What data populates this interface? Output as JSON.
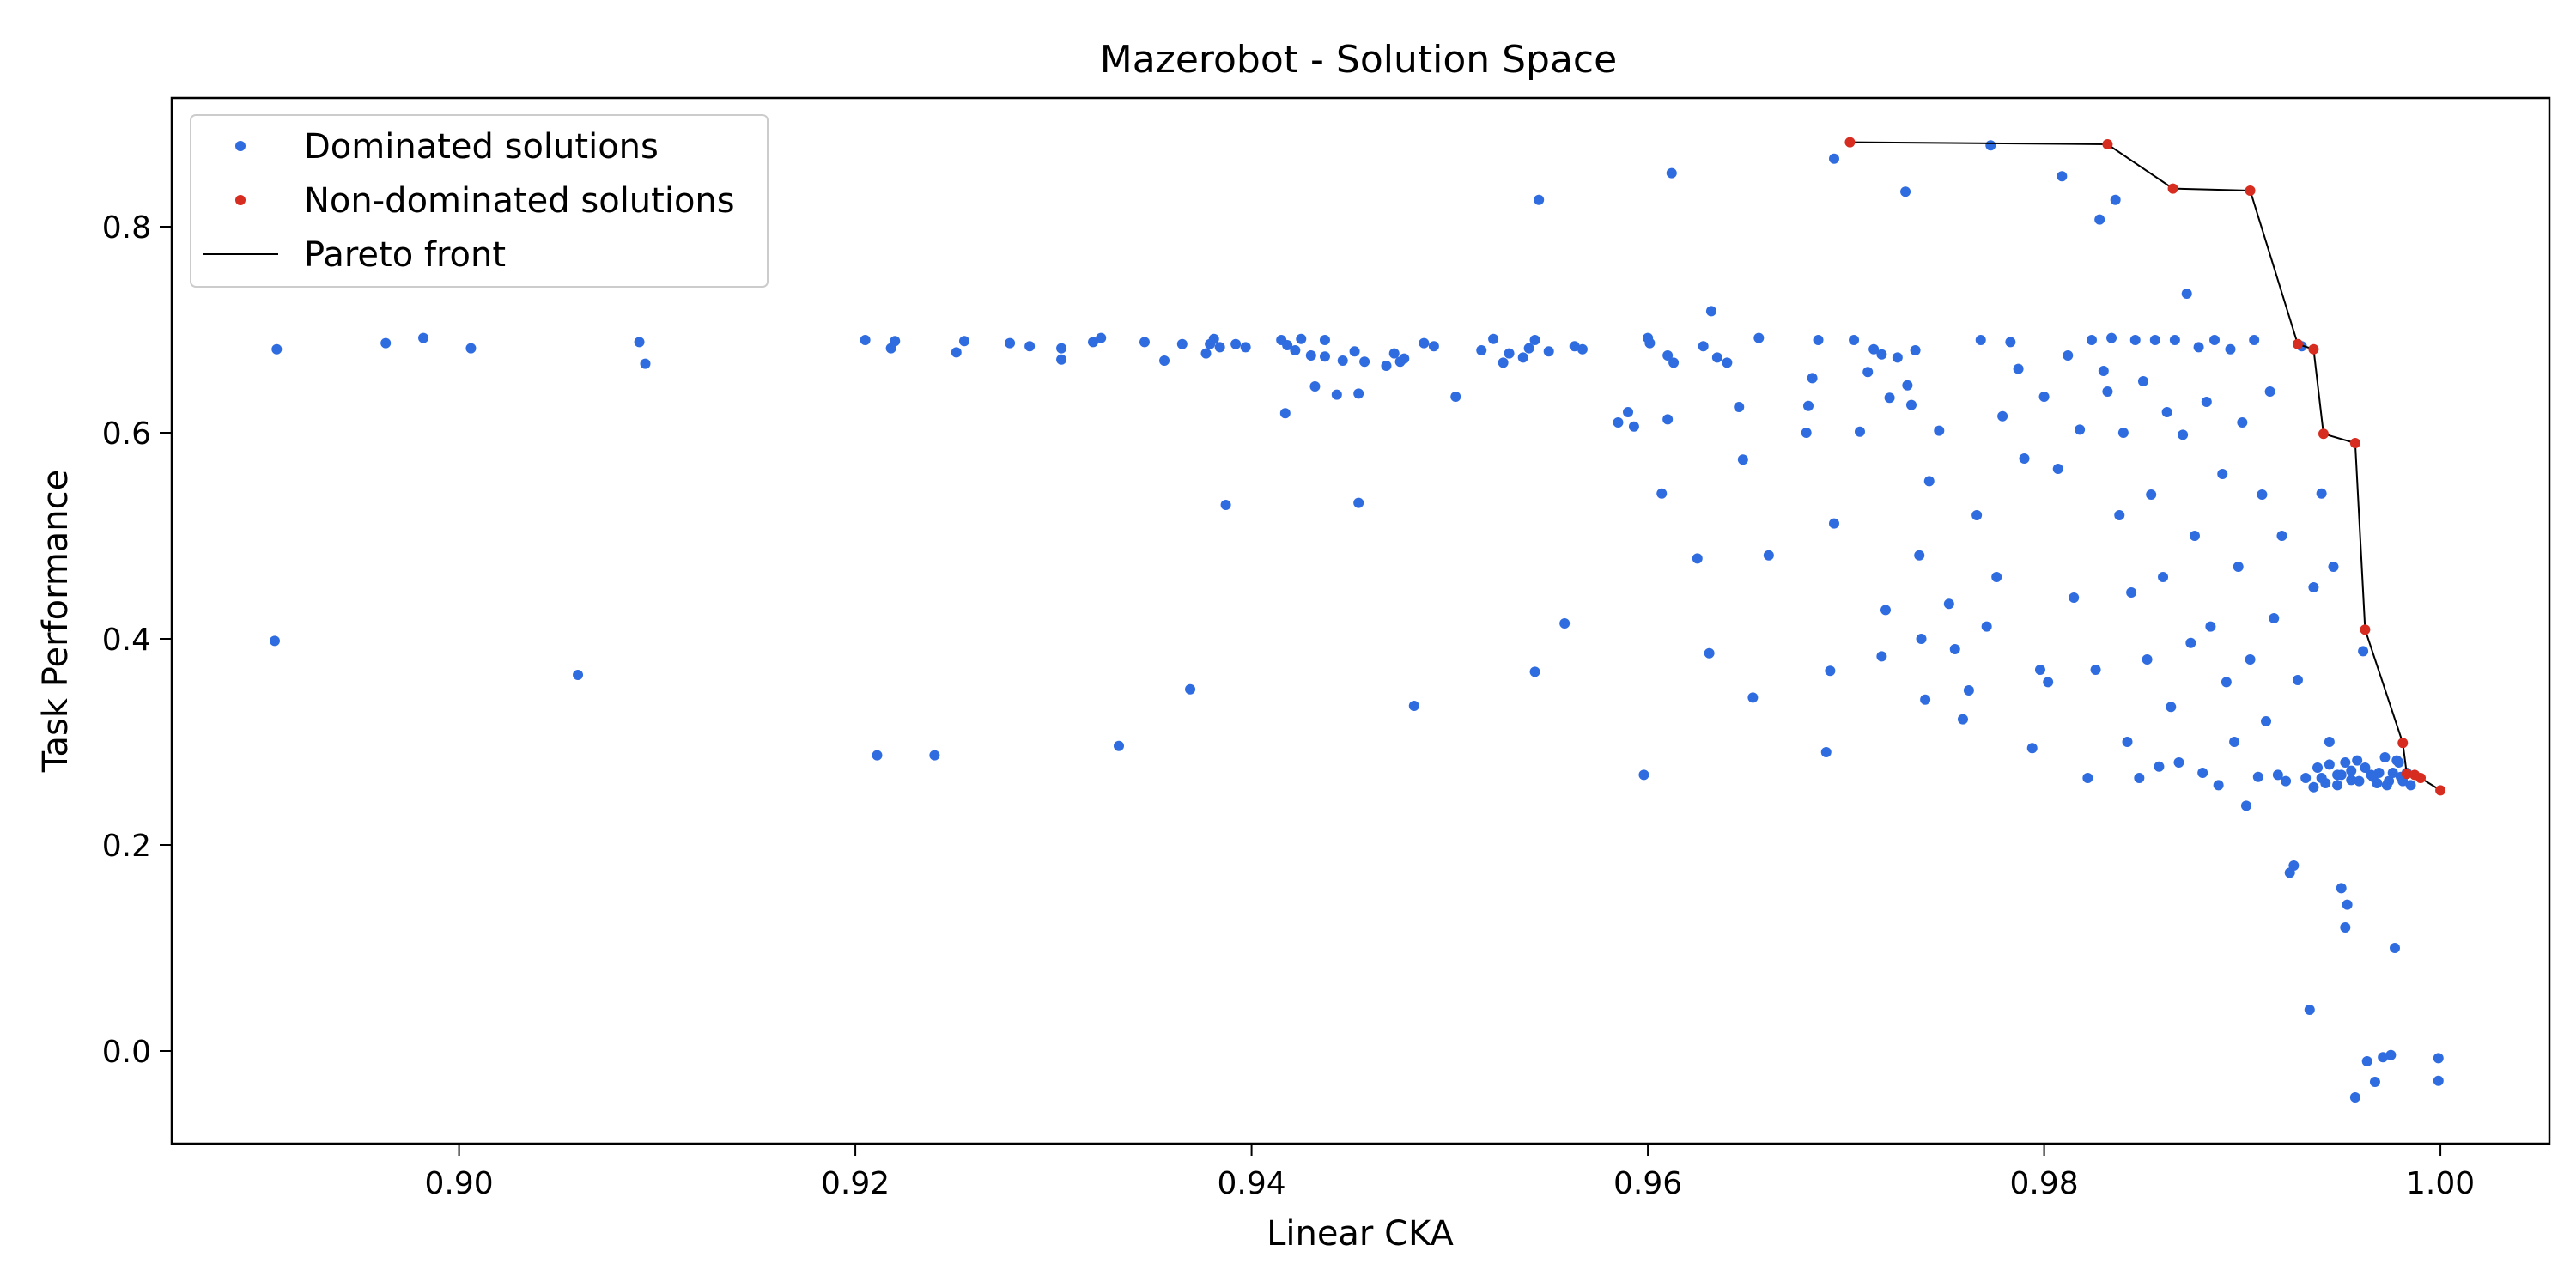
{
  "chart_data": {
    "type": "scatter",
    "title": "Mazerobot - Solution Space",
    "xlabel": "Linear CKA",
    "ylabel": "Task Performance",
    "xlim": [
      0.8855,
      1.0055
    ],
    "ylim": [
      -0.09,
      0.925
    ],
    "xticks": [
      0.9,
      0.92,
      0.94,
      0.96,
      0.98,
      1.0
    ],
    "xtick_labels": [
      "0.90",
      "0.92",
      "0.94",
      "0.96",
      "0.98",
      "1.00"
    ],
    "yticks": [
      0.0,
      0.2,
      0.4,
      0.6,
      0.8
    ],
    "ytick_labels": [
      "0.0",
      "0.2",
      "0.4",
      "0.6",
      "0.8"
    ],
    "grid": false,
    "legend_position": "top-left",
    "colors": {
      "dominated": "#2f6ce0",
      "nondominated": "#d62d20",
      "front": "#000000"
    },
    "legend": [
      "Dominated solutions",
      "Non-dominated solutions",
      "Pareto front"
    ],
    "series": [
      {
        "name": "Dominated solutions",
        "points": [
          [
            0.8908,
            0.681
          ],
          [
            0.8907,
            0.398
          ],
          [
            0.8963,
            0.687
          ],
          [
            0.8982,
            0.692
          ],
          [
            0.9006,
            0.682
          ],
          [
            0.906,
            0.365
          ],
          [
            0.9091,
            0.688
          ],
          [
            0.9094,
            0.667
          ],
          [
            0.9205,
            0.69
          ],
          [
            0.9218,
            0.682
          ],
          [
            0.922,
            0.689
          ],
          [
            0.9211,
            0.287
          ],
          [
            0.924,
            0.287
          ],
          [
            0.9251,
            0.678
          ],
          [
            0.9255,
            0.689
          ],
          [
            0.9278,
            0.687
          ],
          [
            0.9288,
            0.684
          ],
          [
            0.9304,
            0.682
          ],
          [
            0.9304,
            0.671
          ],
          [
            0.932,
            0.688
          ],
          [
            0.9324,
            0.692
          ],
          [
            0.9333,
            0.296
          ],
          [
            0.9346,
            0.688
          ],
          [
            0.9356,
            0.67
          ],
          [
            0.9365,
            0.686
          ],
          [
            0.9369,
            0.351
          ],
          [
            0.9377,
            0.677
          ],
          [
            0.9379,
            0.686
          ],
          [
            0.9381,
            0.691
          ],
          [
            0.9384,
            0.683
          ],
          [
            0.9387,
            0.53
          ],
          [
            0.9392,
            0.686
          ],
          [
            0.9397,
            0.683
          ],
          [
            0.9415,
            0.69
          ],
          [
            0.9417,
            0.619
          ],
          [
            0.9418,
            0.685
          ],
          [
            0.9422,
            0.68
          ],
          [
            0.9425,
            0.691
          ],
          [
            0.943,
            0.675
          ],
          [
            0.9432,
            0.645
          ],
          [
            0.9437,
            0.674
          ],
          [
            0.9437,
            0.69
          ],
          [
            0.9443,
            0.637
          ],
          [
            0.9446,
            0.67
          ],
          [
            0.9452,
            0.679
          ],
          [
            0.9454,
            0.532
          ],
          [
            0.9454,
            0.638
          ],
          [
            0.9457,
            0.669
          ],
          [
            0.9468,
            0.665
          ],
          [
            0.9472,
            0.677
          ],
          [
            0.9475,
            0.669
          ],
          [
            0.9477,
            0.672
          ],
          [
            0.9482,
            0.335
          ],
          [
            0.9487,
            0.687
          ],
          [
            0.9492,
            0.684
          ],
          [
            0.9503,
            0.635
          ],
          [
            0.9516,
            0.68
          ],
          [
            0.9522,
            0.691
          ],
          [
            0.9527,
            0.668
          ],
          [
            0.953,
            0.677
          ],
          [
            0.9537,
            0.673
          ],
          [
            0.954,
            0.682
          ],
          [
            0.9543,
            0.69
          ],
          [
            0.9543,
            0.368
          ],
          [
            0.9545,
            0.826
          ],
          [
            0.955,
            0.679
          ],
          [
            0.9558,
            0.415
          ],
          [
            0.9563,
            0.684
          ],
          [
            0.9567,
            0.681
          ],
          [
            0.9585,
            0.61
          ],
          [
            0.959,
            0.62
          ],
          [
            0.9593,
            0.606
          ],
          [
            0.9598,
            0.268
          ],
          [
            0.96,
            0.692
          ],
          [
            0.9601,
            0.687
          ],
          [
            0.9607,
            0.541
          ],
          [
            0.961,
            0.675
          ],
          [
            0.961,
            0.613
          ],
          [
            0.9612,
            0.852
          ],
          [
            0.9613,
            0.668
          ],
          [
            0.9625,
            0.478
          ],
          [
            0.9628,
            0.684
          ],
          [
            0.9631,
            0.386
          ],
          [
            0.9632,
            0.718
          ],
          [
            0.9635,
            0.673
          ],
          [
            0.964,
            0.668
          ],
          [
            0.9646,
            0.625
          ],
          [
            0.9648,
            0.574
          ],
          [
            0.9653,
            0.343
          ],
          [
            0.9656,
            0.692
          ],
          [
            0.9661,
            0.481
          ],
          [
            0.9681,
            0.626
          ],
          [
            0.968,
            0.6
          ],
          [
            0.9683,
            0.653
          ],
          [
            0.9686,
            0.69
          ],
          [
            0.969,
            0.29
          ],
          [
            0.9692,
            0.369
          ],
          [
            0.9694,
            0.866
          ],
          [
            0.9694,
            0.512
          ],
          [
            0.9704,
            0.69
          ],
          [
            0.9707,
            0.601
          ],
          [
            0.9711,
            0.659
          ],
          [
            0.9714,
            0.681
          ],
          [
            0.9718,
            0.676
          ],
          [
            0.9718,
            0.383
          ],
          [
            0.972,
            0.428
          ],
          [
            0.9722,
            0.634
          ],
          [
            0.9726,
            0.673
          ],
          [
            0.973,
            0.834
          ],
          [
            0.9731,
            0.646
          ],
          [
            0.9733,
            0.627
          ],
          [
            0.9735,
            0.68
          ],
          [
            0.9737,
            0.481
          ],
          [
            0.9738,
            0.4
          ],
          [
            0.974,
            0.341
          ],
          [
            0.9742,
            0.553
          ],
          [
            0.9747,
            0.602
          ],
          [
            0.9752,
            0.434
          ],
          [
            0.9755,
            0.39
          ],
          [
            0.9759,
            0.322
          ],
          [
            0.9762,
            0.35
          ],
          [
            0.9766,
            0.52
          ],
          [
            0.9768,
            0.69
          ],
          [
            0.9771,
            0.412
          ],
          [
            0.9773,
            0.879
          ],
          [
            0.9776,
            0.46
          ],
          [
            0.9779,
            0.616
          ],
          [
            0.9783,
            0.688
          ],
          [
            0.9787,
            0.662
          ],
          [
            0.979,
            0.575
          ],
          [
            0.9794,
            0.294
          ],
          [
            0.9798,
            0.37
          ],
          [
            0.98,
            0.635
          ],
          [
            0.9802,
            0.358
          ],
          [
            0.9807,
            0.565
          ],
          [
            0.9809,
            0.849
          ],
          [
            0.9812,
            0.675
          ],
          [
            0.9815,
            0.44
          ],
          [
            0.9818,
            0.603
          ],
          [
            0.9822,
            0.265
          ],
          [
            0.9824,
            0.69
          ],
          [
            0.9826,
            0.37
          ],
          [
            0.9828,
            0.807
          ],
          [
            0.983,
            0.66
          ],
          [
            0.9832,
            0.64
          ],
          [
            0.9834,
            0.692
          ],
          [
            0.9836,
            0.826
          ],
          [
            0.9838,
            0.52
          ],
          [
            0.984,
            0.6
          ],
          [
            0.9842,
            0.3
          ],
          [
            0.9844,
            0.445
          ],
          [
            0.9846,
            0.69
          ],
          [
            0.9848,
            0.265
          ],
          [
            0.985,
            0.65
          ],
          [
            0.9852,
            0.38
          ],
          [
            0.9854,
            0.54
          ],
          [
            0.9856,
            0.69
          ],
          [
            0.9858,
            0.276
          ],
          [
            0.986,
            0.46
          ],
          [
            0.9862,
            0.62
          ],
          [
            0.9864,
            0.334
          ],
          [
            0.9866,
            0.69
          ],
          [
            0.9868,
            0.28
          ],
          [
            0.987,
            0.598
          ],
          [
            0.9872,
            0.735
          ],
          [
            0.9874,
            0.396
          ],
          [
            0.9876,
            0.5
          ],
          [
            0.9878,
            0.683
          ],
          [
            0.988,
            0.27
          ],
          [
            0.9882,
            0.63
          ],
          [
            0.9884,
            0.412
          ],
          [
            0.9886,
            0.69
          ],
          [
            0.9888,
            0.258
          ],
          [
            0.989,
            0.56
          ],
          [
            0.9892,
            0.358
          ],
          [
            0.9894,
            0.681
          ],
          [
            0.9896,
            0.3
          ],
          [
            0.9898,
            0.47
          ],
          [
            0.99,
            0.61
          ],
          [
            0.9902,
            0.238
          ],
          [
            0.9904,
            0.38
          ],
          [
            0.9906,
            0.69
          ],
          [
            0.9908,
            0.266
          ],
          [
            0.991,
            0.54
          ],
          [
            0.9912,
            0.32
          ],
          [
            0.9914,
            0.64
          ],
          [
            0.9916,
            0.42
          ],
          [
            0.9918,
            0.268
          ],
          [
            0.992,
            0.5
          ],
          [
            0.9922,
            0.262
          ],
          [
            0.9924,
            0.173
          ],
          [
            0.9926,
            0.18
          ],
          [
            0.9928,
            0.36
          ],
          [
            0.993,
            0.684
          ],
          [
            0.9932,
            0.265
          ],
          [
            0.9934,
            0.04
          ],
          [
            0.9936,
            0.45
          ],
          [
            0.9938,
            0.275
          ],
          [
            0.994,
            0.541
          ],
          [
            0.9942,
            0.26
          ],
          [
            0.9944,
            0.3
          ],
          [
            0.9946,
            0.47
          ],
          [
            0.9948,
            0.268
          ],
          [
            0.995,
            0.158
          ],
          [
            0.9952,
            0.12
          ],
          [
            0.9953,
            0.142
          ],
          [
            0.9955,
            0.272
          ],
          [
            0.9957,
            -0.045
          ],
          [
            0.9959,
            0.262
          ],
          [
            0.9961,
            0.388
          ],
          [
            0.9963,
            -0.01
          ],
          [
            0.9965,
            0.268
          ],
          [
            0.9967,
            -0.03
          ],
          [
            0.9969,
            0.27
          ],
          [
            0.9971,
            -0.006
          ],
          [
            0.9973,
            0.258
          ],
          [
            0.9975,
            -0.004
          ],
          [
            0.9977,
            0.1
          ],
          [
            0.9979,
            0.28
          ],
          [
            0.9981,
            0.262
          ],
          [
            0.9983,
            0.27
          ],
          [
            0.9985,
            0.258
          ],
          [
            0.9999,
            -0.007
          ],
          [
            0.9999,
            -0.029
          ],
          [
            0.995,
            0.268
          ],
          [
            0.9948,
            0.258
          ],
          [
            0.9955,
            0.263
          ],
          [
            0.9962,
            0.275
          ],
          [
            0.9968,
            0.26
          ],
          [
            0.9972,
            0.285
          ],
          [
            0.9976,
            0.27
          ],
          [
            0.998,
            0.266
          ],
          [
            0.9958,
            0.282
          ],
          [
            0.9944,
            0.278
          ],
          [
            0.994,
            0.265
          ],
          [
            0.9936,
            0.256
          ],
          [
            0.9952,
            0.28
          ],
          [
            0.9966,
            0.266
          ],
          [
            0.9974,
            0.262
          ],
          [
            0.9978,
            0.282
          ]
        ]
      },
      {
        "name": "Non-dominated solutions",
        "points": [
          [
            0.9702,
            0.882
          ],
          [
            0.9832,
            0.88
          ],
          [
            0.9865,
            0.837
          ],
          [
            0.9904,
            0.835
          ],
          [
            0.9928,
            0.686
          ],
          [
            0.9936,
            0.681
          ],
          [
            0.9941,
            0.599
          ],
          [
            0.9957,
            0.59
          ],
          [
            0.9962,
            0.409
          ],
          [
            0.9981,
            0.299
          ],
          [
            0.9983,
            0.269
          ],
          [
            0.9987,
            0.268
          ],
          [
            0.999,
            0.265
          ],
          [
            1.0,
            0.253
          ]
        ]
      }
    ]
  }
}
